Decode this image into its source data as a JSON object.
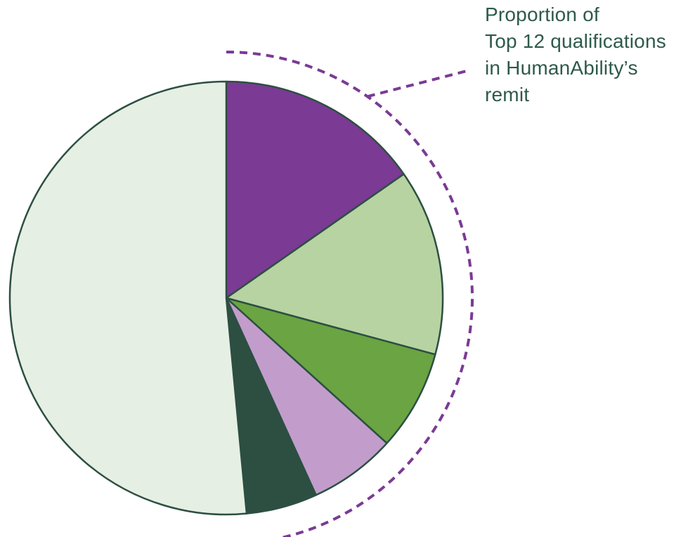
{
  "chart_data": {
    "type": "pie",
    "annotation_lines": [
      "Proportion of",
      "Top 12 qualifications",
      "in HumanAbility’s",
      "remit"
    ],
    "slices": [
      {
        "value": 15.3,
        "color": "#7b3a94"
      },
      {
        "value": 13.9,
        "color": "#b7d3a2"
      },
      {
        "value": 7.5,
        "color": "#6ba442"
      },
      {
        "value": 6.5,
        "color": "#c29dcc"
      },
      {
        "value": 5.3,
        "color": "#2c4f42"
      },
      {
        "value": 51.5,
        "color": "#e6efe3"
      }
    ],
    "start": "12 o'clock",
    "direction": "clockwise",
    "highlighted_slices": 5,
    "colors": {
      "outline": "#2c4f42",
      "bracket": "#7b3a94",
      "text": "#2e5a4a"
    }
  }
}
